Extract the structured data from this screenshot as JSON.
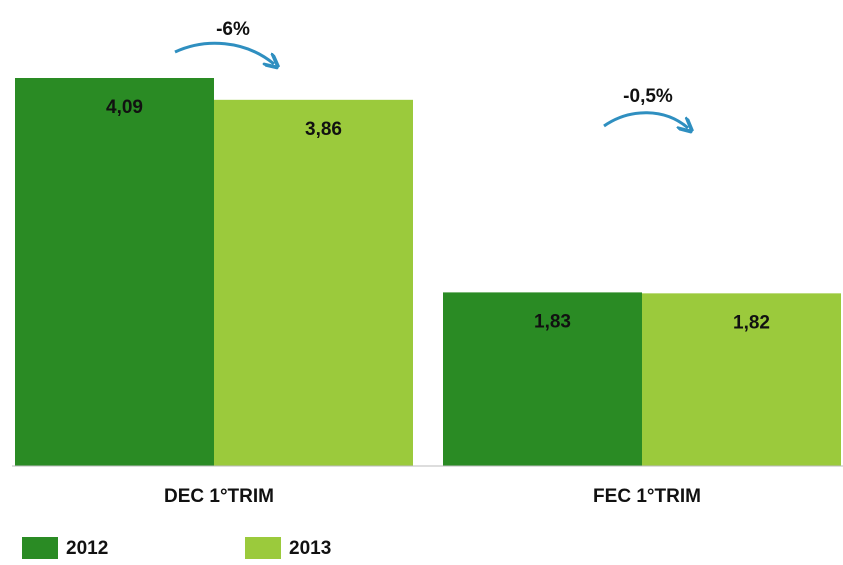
{
  "chart_data": {
    "type": "bar",
    "categories": [
      "DEC 1°TRIM",
      "FEC 1°TRIM"
    ],
    "series": [
      {
        "name": "2012",
        "color": "#2a8b24",
        "values": [
          4.09,
          1.83
        ],
        "value_labels": [
          "4,09",
          "1,83"
        ]
      },
      {
        "name": "2013",
        "color": "#9bca3c",
        "values": [
          3.86,
          1.82
        ],
        "value_labels": [
          "3,86",
          "1,82"
        ]
      }
    ],
    "annotations": [
      "-6%",
      "-0,5%"
    ]
  }
}
